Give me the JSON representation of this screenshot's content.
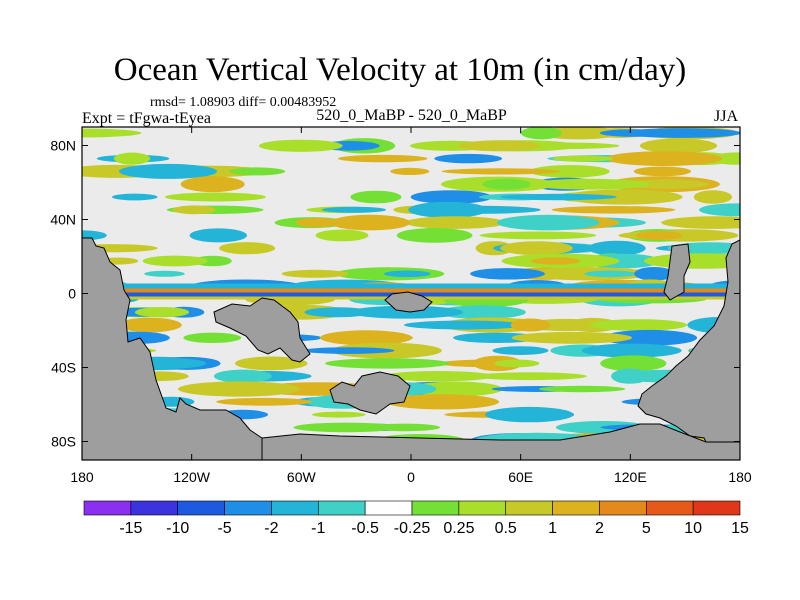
{
  "title": "Ocean Vertical Velocity at 10m (in cm/day)",
  "stats": "rmsd= 1.08903 diff= 0.00483952",
  "experiment": "Expt = tFgwa-tEyea",
  "period": "520_0_MaBP - 520_0_MaBP",
  "season": "JJA",
  "colors": {
    "land": "#9e9e9e",
    "near_zero": "#ebebeb",
    "palette": [
      "#8b2ff0",
      "#3b32e0",
      "#1e5ae0",
      "#1e8ee6",
      "#23b4d8",
      "#3fd0c8",
      "#ffffff",
      "#74e035",
      "#a9df2a",
      "#c8c829",
      "#dcb21f",
      "#e4891c",
      "#e55a18",
      "#e0361a"
    ]
  },
  "chart_data": {
    "type": "heatmap",
    "title": "Ocean Vertical Velocity at 10m (in cm/day)",
    "variable": "Ocean vertical velocity at 10m",
    "units": "cm/day",
    "x_axis": {
      "range": [
        -180,
        180
      ],
      "ticks": [
        -180,
        -120,
        -60,
        0,
        60,
        120,
        180
      ],
      "tick_labels": [
        "180",
        "120W",
        "60W",
        "0",
        "60E",
        "120E",
        "180"
      ]
    },
    "y_axis": {
      "range": [
        -90,
        90
      ],
      "ticks": [
        80,
        40,
        0,
        -40,
        -80
      ],
      "tick_labels": [
        "80N",
        "40N",
        "0",
        "40S",
        "80S"
      ]
    },
    "colorbar": {
      "levels": [
        "-15",
        "-10",
        "-5",
        "-2",
        "-1",
        "-0.5",
        "-0.25",
        "0.25",
        "0.5",
        "1",
        "2",
        "5",
        "10",
        "15"
      ],
      "colors": [
        "#8b2ff0",
        "#3b32e0",
        "#1e5ae0",
        "#1e8ee6",
        "#23b4d8",
        "#3fd0c8",
        "#ffffff",
        "#74e035",
        "#a9df2a",
        "#c8c829",
        "#dcb21f",
        "#e4891c",
        "#e55a18",
        "#e0361a"
      ]
    }
  }
}
